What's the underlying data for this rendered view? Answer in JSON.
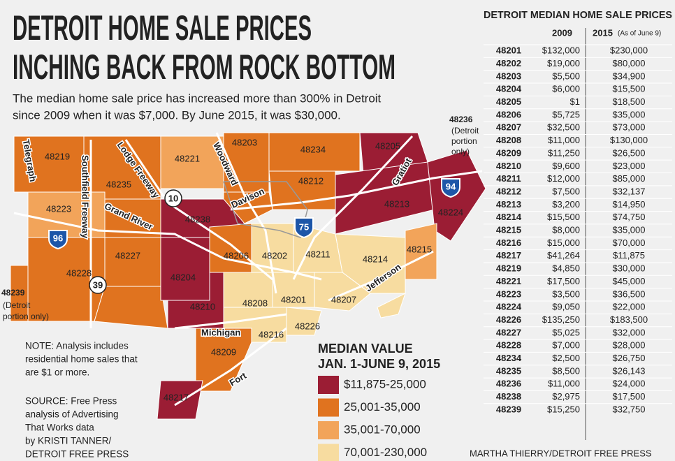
{
  "title": {
    "lines": [
      "DETROIT HOME SALE PRICES",
      "INCHING BACK FROM ROCK BOTTOM"
    ]
  },
  "subtitle": {
    "lines": [
      "The median home sale price has increased more than 300% in Detroit",
      "since 2009 when it was $7,000. By June 2015, it was $30,000."
    ]
  },
  "map": {
    "zip_labels": [
      "48219",
      "48235",
      "48221",
      "48203",
      "48234",
      "48212",
      "48205",
      "48213",
      "48224",
      "48223",
      "48238",
      "48227",
      "48228",
      "48204",
      "48206",
      "48202",
      "48211",
      "48214",
      "48215",
      "48210",
      "48208",
      "48201",
      "48207",
      "48216",
      "48226",
      "48209",
      "48217"
    ],
    "road_labels": [
      "Telegraph",
      "Southfield Freeway",
      "Lodge Freeway",
      "Woodward",
      "Davison",
      "Grand River",
      "Gratiot",
      "Michigan",
      "Fort",
      "Jefferson"
    ],
    "route_shields": [
      "10",
      "39",
      "96",
      "75",
      "94"
    ],
    "callout_48236": [
      "48236",
      "(Detroit",
      "portion",
      "only)"
    ],
    "callout_48239": [
      "48239",
      "(Detroit",
      "portion only)"
    ]
  },
  "note": [
    "NOTE: Analysis includes",
    "residential home sales that",
    "are $1 or more."
  ],
  "source": [
    "SOURCE: Free Press",
    "analysis  of Advertising",
    "That Works data",
    "by KRISTI TANNER/",
    "DETROIT FREE PRESS"
  ],
  "legend": {
    "title": [
      "MEDIAN VALUE",
      "JAN. 1-JUNE 9, 2015"
    ],
    "items": [
      {
        "label": "$11,875-25,000",
        "color": "#9b1d34"
      },
      {
        "label": "25,001-35,000",
        "color": "#e0731f"
      },
      {
        "label": "35,001-70,000",
        "color": "#f2a45a"
      },
      {
        "label": "70,001-230,000",
        "color": "#f7dca0"
      }
    ]
  },
  "table": {
    "title": "DETROIT MEDIAN HOME SALE PRICES",
    "headers": [
      "2009",
      "2015",
      "(As of June 9)"
    ],
    "rows": [
      [
        "48201",
        "$132,000",
        "$230,000"
      ],
      [
        "48202",
        "$19,000",
        "$80,000"
      ],
      [
        "48203",
        "$5,500",
        "$34,900"
      ],
      [
        "48204",
        "$6,000",
        "$15,500"
      ],
      [
        "48205",
        "$1",
        "$18,500"
      ],
      [
        "48206",
        "$5,725",
        "$35,000"
      ],
      [
        "48207",
        "$32,500",
        "$73,000"
      ],
      [
        "48208",
        "$11,000",
        "$130,000"
      ],
      [
        "48209",
        "$11,250",
        "$26,500"
      ],
      [
        "48210",
        "$9,600",
        "$23,000"
      ],
      [
        "48211",
        "$12,000",
        "$85,000"
      ],
      [
        "48212",
        "$7,500",
        "$32,137"
      ],
      [
        "48213",
        "$3,200",
        "$14,950"
      ],
      [
        "48214",
        "$15,500",
        "$74,750"
      ],
      [
        "48215",
        "$8,000",
        "$35,000"
      ],
      [
        "48216",
        "$15,000",
        "$70,000"
      ],
      [
        "48217",
        "$41,264",
        "$11,875"
      ],
      [
        "48219",
        "$4,850",
        "$30,000"
      ],
      [
        "48221",
        "$17,500",
        "$45,000"
      ],
      [
        "48223",
        "$3,500",
        "$36,500"
      ],
      [
        "48224",
        "$9,050",
        "$22,000"
      ],
      [
        "48226",
        "$135,250",
        "$183,500"
      ],
      [
        "48227",
        "$5,025",
        "$32,000"
      ],
      [
        "48228",
        "$7,000",
        "$28,000"
      ],
      [
        "48234",
        "$2,500",
        "$26,750"
      ],
      [
        "48235",
        "$8,500",
        "$26,143"
      ],
      [
        "48236",
        "$11,000",
        "$24,000"
      ],
      [
        "48238",
        "$2,975",
        "$17,500"
      ],
      [
        "48239",
        "$15,250",
        "$32,750"
      ]
    ]
  },
  "credit": "MARTHA THIERRY/DETROIT FREE PRESS"
}
